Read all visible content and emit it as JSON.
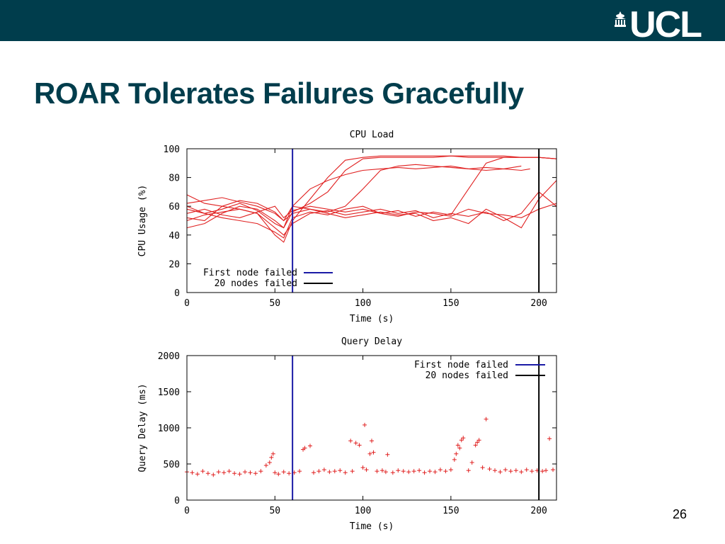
{
  "header": {
    "logo_text": "UCL",
    "logo_icon": "portico-icon",
    "bar_color": "#003d4c"
  },
  "slide": {
    "title": "ROAR Tolerates Failures Gracefully",
    "page_number": "26"
  },
  "chart_data": [
    {
      "type": "line",
      "title": "CPU Load",
      "xlabel": "Time (s)",
      "ylabel": "CPU Usage (%)",
      "xlim": [
        0,
        210
      ],
      "ylim": [
        0,
        100
      ],
      "xticks": [
        0,
        50,
        100,
        150,
        200
      ],
      "yticks": [
        0,
        20,
        40,
        60,
        80,
        100
      ],
      "grid": false,
      "legend_position": "bottom-left",
      "series_color": "#e02020",
      "legend": [
        {
          "label": "First node failed",
          "color": "#1a1aa6"
        },
        {
          "label": "20 nodes failed",
          "color": "#000000"
        }
      ],
      "vlines": [
        {
          "x": 60,
          "color": "#1a1aa6"
        },
        {
          "x": 200,
          "color": "#000000"
        }
      ],
      "series": [
        {
          "x": [
            0,
            10,
            20,
            30,
            40,
            50,
            55,
            60,
            70,
            80,
            90,
            100,
            110,
            120,
            130,
            140,
            150,
            160,
            170,
            180,
            190,
            200,
            210
          ],
          "values": [
            60,
            55,
            58,
            62,
            57,
            48,
            45,
            56,
            62,
            70,
            85,
            93,
            94,
            94,
            94,
            94,
            95,
            94,
            94,
            94,
            94,
            94,
            93
          ]
        },
        {
          "x": [
            0,
            10,
            20,
            30,
            40,
            50,
            55,
            60,
            70,
            80,
            90,
            100,
            110,
            120,
            130,
            140,
            150,
            160,
            170,
            180,
            190,
            200,
            210
          ],
          "values": [
            52,
            50,
            60,
            58,
            55,
            40,
            35,
            50,
            65,
            80,
            92,
            94,
            95,
            95,
            95,
            95,
            95,
            95,
            95,
            95,
            94,
            94,
            93
          ]
        },
        {
          "x": [
            0,
            10,
            20,
            30,
            40,
            50,
            55,
            60,
            70,
            80,
            90,
            100,
            110,
            120,
            130,
            140,
            150,
            160,
            170,
            180,
            190
          ],
          "values": [
            45,
            48,
            55,
            60,
            58,
            50,
            45,
            60,
            72,
            78,
            82,
            85,
            86,
            87,
            86,
            87,
            88,
            86,
            87,
            86,
            88
          ]
        },
        {
          "x": [
            0,
            10,
            20,
            30,
            40,
            50,
            55,
            60,
            70,
            80,
            90,
            100,
            110,
            120,
            130,
            140,
            150,
            160,
            170,
            180,
            190,
            195
          ],
          "values": [
            68,
            62,
            60,
            64,
            62,
            56,
            50,
            55,
            58,
            56,
            60,
            72,
            85,
            88,
            89,
            88,
            87,
            86,
            85,
            86,
            85,
            86
          ]
        },
        {
          "x": [
            0,
            10,
            20,
            30,
            40,
            50,
            55,
            60,
            70,
            80,
            90,
            100,
            110,
            120,
            130,
            140,
            150,
            160,
            170,
            180,
            190,
            200,
            210
          ],
          "values": [
            58,
            55,
            52,
            50,
            48,
            42,
            38,
            52,
            56,
            54,
            58,
            60,
            55,
            57,
            53,
            56,
            54,
            72,
            90,
            94,
            94,
            94,
            93
          ]
        },
        {
          "x": [
            0,
            10,
            20,
            30,
            40,
            50,
            55,
            60,
            70,
            80,
            90,
            100,
            110,
            120,
            130,
            140,
            150,
            160,
            170,
            180,
            190,
            200,
            210
          ],
          "values": [
            50,
            54,
            56,
            58,
            55,
            45,
            40,
            48,
            55,
            57,
            54,
            56,
            58,
            55,
            57,
            52,
            55,
            53,
            56,
            50,
            55,
            70,
            60
          ]
        },
        {
          "x": [
            0,
            10,
            20,
            30,
            40,
            50,
            55,
            60,
            70,
            80,
            90,
            100,
            110,
            120,
            130,
            140,
            150,
            160,
            170,
            180,
            190,
            200,
            210
          ],
          "values": [
            62,
            64,
            66,
            63,
            60,
            55,
            50,
            60,
            58,
            55,
            52,
            54,
            56,
            54,
            55,
            50,
            52,
            48,
            58,
            52,
            45,
            65,
            78
          ]
        },
        {
          "x": [
            0,
            10,
            20,
            30,
            40,
            50,
            55,
            60,
            70,
            80,
            90,
            100,
            110,
            120,
            130,
            140,
            150,
            160,
            170,
            180,
            190,
            200,
            210
          ],
          "values": [
            55,
            58,
            54,
            52,
            56,
            60,
            52,
            57,
            60,
            58,
            56,
            58,
            55,
            53,
            56,
            55,
            53,
            58,
            55,
            54,
            52,
            58,
            62
          ]
        }
      ]
    },
    {
      "type": "scatter",
      "title": "Query Delay",
      "xlabel": "Time (s)",
      "ylabel": "Query Delay (ms)",
      "xlim": [
        0,
        210
      ],
      "ylim": [
        0,
        2000
      ],
      "xticks": [
        0,
        50,
        100,
        150,
        200
      ],
      "yticks": [
        0,
        500,
        1000,
        1500,
        2000
      ],
      "grid": false,
      "legend_position": "top-right",
      "series_color": "#e02020",
      "legend": [
        {
          "label": "First node failed",
          "color": "#1a1aa6"
        },
        {
          "label": "20 nodes failed",
          "color": "#000000"
        }
      ],
      "vlines": [
        {
          "x": 60,
          "color": "#1a1aa6"
        },
        {
          "x": 200,
          "color": "#000000"
        }
      ],
      "series": [
        {
          "x": [
            0,
            3,
            6,
            9,
            12,
            15,
            18,
            21,
            24,
            27,
            30,
            33,
            36,
            39,
            42,
            45,
            47,
            48,
            49,
            50,
            52,
            55,
            58,
            61,
            64,
            66,
            67,
            70,
            72,
            75,
            78,
            81,
            84,
            87,
            90,
            93,
            94,
            96,
            98,
            100,
            101,
            102,
            104,
            105,
            106,
            108,
            111,
            113,
            114,
            117,
            120,
            123,
            126,
            129,
            132,
            135,
            138,
            141,
            144,
            147,
            150,
            152,
            153,
            154,
            155,
            156,
            157,
            160,
            162,
            164,
            165,
            166,
            168,
            170,
            172,
            175,
            178,
            181,
            184,
            187,
            190,
            193,
            196,
            199,
            202,
            204,
            206,
            208
          ],
          "values": [
            390,
            380,
            360,
            400,
            370,
            350,
            390,
            380,
            400,
            370,
            360,
            390,
            380,
            370,
            400,
            480,
            520,
            590,
            640,
            380,
            360,
            390,
            370,
            380,
            400,
            700,
            720,
            750,
            380,
            400,
            420,
            390,
            400,
            410,
            380,
            820,
            400,
            790,
            760,
            450,
            1040,
            420,
            640,
            820,
            660,
            400,
            410,
            390,
            630,
            380,
            410,
            400,
            390,
            400,
            410,
            380,
            400,
            390,
            420,
            400,
            420,
            560,
            640,
            760,
            720,
            830,
            860,
            410,
            520,
            760,
            800,
            830,
            450,
            1120,
            430,
            410,
            390,
            420,
            400,
            410,
            390,
            420,
            400,
            410,
            400,
            410,
            850,
            420
          ]
        }
      ]
    }
  ]
}
